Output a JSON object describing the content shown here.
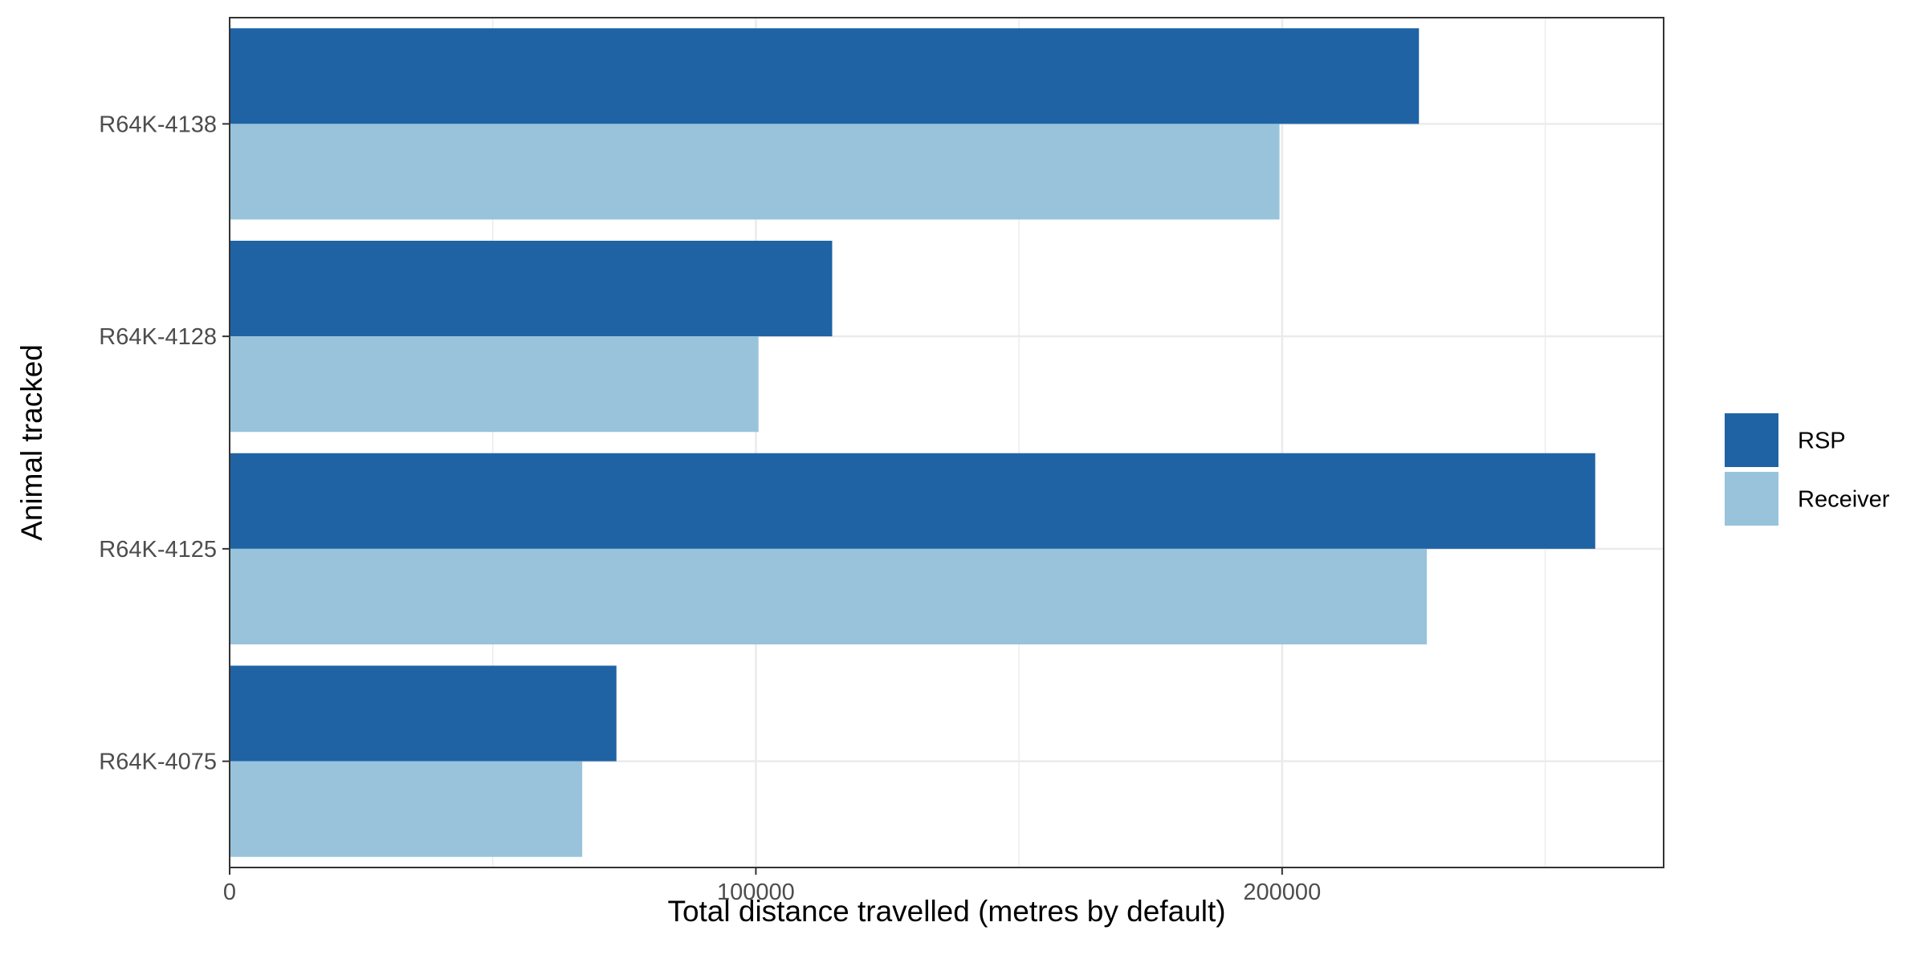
{
  "chart_data": {
    "type": "bar",
    "orientation": "horizontal",
    "categories": [
      "R64K-4138",
      "R64K-4128",
      "R64K-4125",
      "R64K-4075"
    ],
    "series": [
      {
        "name": "RSP",
        "color": "#1f63a5",
        "values": [
          226000,
          114500,
          259500,
          73500
        ]
      },
      {
        "name": "Receiver",
        "color": "#98c3db",
        "values": [
          199500,
          100500,
          227500,
          67000
        ]
      }
    ],
    "xlabel": "Total distance travelled (metres by default)",
    "ylabel": "Animal tracked",
    "xlim": [
      0,
      272500
    ],
    "x_ticks": [
      0,
      100000,
      200000
    ],
    "x_tick_labels": [
      "0",
      "100000",
      "200000"
    ],
    "grid": true,
    "legend_position": "right"
  }
}
